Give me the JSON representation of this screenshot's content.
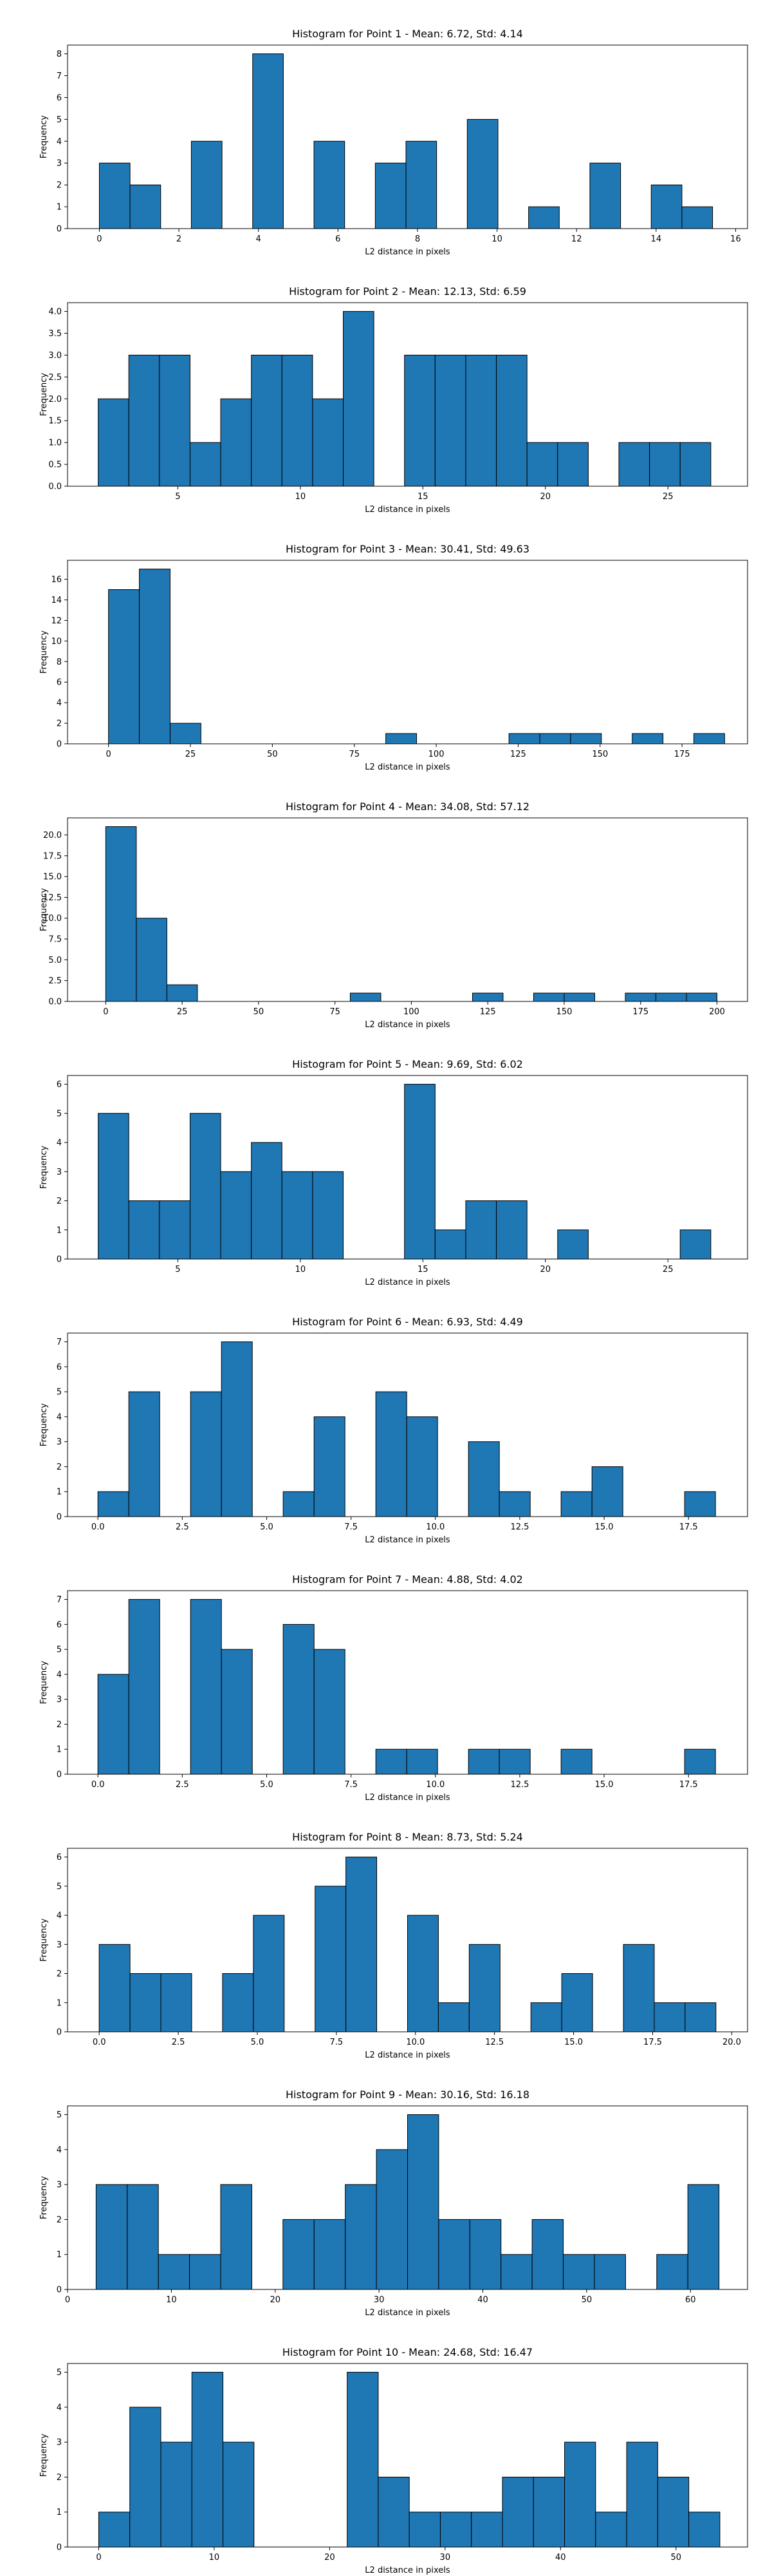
{
  "chart_data": [
    {
      "type": "bar",
      "title": "Histogram for Point 1 - Mean: 6.72, Std: 4.14",
      "xlabel": "L2 distance in pixels",
      "ylabel": "Frequency",
      "xlim": [
        -0.8,
        16.3
      ],
      "ylim": [
        0,
        8.4
      ],
      "xticks": [
        0,
        2,
        4,
        6,
        8,
        10,
        12,
        14,
        16
      ],
      "yticks": [
        0,
        1,
        2,
        3,
        4,
        5,
        6,
        7,
        8
      ],
      "bin_edges": [
        0,
        0.771,
        1.542,
        2.313,
        3.084,
        3.855,
        4.626,
        5.397,
        6.168,
        6.939,
        7.71,
        8.481,
        9.252,
        10.023,
        10.794,
        11.565,
        12.336,
        13.107,
        13.878,
        14.649,
        15.42
      ],
      "values": [
        3,
        2,
        0,
        4,
        0,
        8,
        0,
        4,
        0,
        3,
        4,
        0,
        5,
        0,
        1,
        0,
        3,
        0,
        2,
        1
      ]
    },
    {
      "type": "bar",
      "title": "Histogram for Point 2 - Mean: 12.13, Std: 6.59",
      "xlabel": "L2 distance in pixels",
      "ylabel": "Frequency",
      "xlim": [
        0.5,
        28.25
      ],
      "ylim": [
        0,
        4.2
      ],
      "xticks": [
        5,
        10,
        15,
        20,
        25
      ],
      "yticks": [
        0,
        0.5,
        1.0,
        1.5,
        2.0,
        2.5,
        3.0,
        3.5,
        4.0
      ],
      "ytick_labels": [
        "0.0",
        "0.5",
        "1.0",
        "1.5",
        "2.0",
        "2.5",
        "3.0",
        "3.5",
        "4.0"
      ],
      "bin_edges": [
        1.75,
        3.0,
        4.25,
        5.5,
        6.75,
        8.0,
        9.25,
        10.5,
        11.75,
        13.0,
        14.25,
        15.5,
        16.75,
        18.0,
        19.25,
        20.5,
        21.75,
        23.0,
        24.25,
        25.5,
        26.75
      ],
      "values": [
        2,
        3,
        3,
        1,
        2,
        3,
        3,
        2,
        4,
        0,
        3,
        3,
        3,
        3,
        1,
        1,
        0,
        1,
        1,
        1
      ]
    },
    {
      "type": "bar",
      "title": "Histogram for Point 3 - Mean: 30.41, Std: 49.63",
      "xlabel": "L2 distance in pixels",
      "ylabel": "Frequency",
      "xlim": [
        -12.5,
        195
      ],
      "ylim": [
        0,
        17.85
      ],
      "xticks": [
        0,
        25,
        50,
        75,
        100,
        125,
        150,
        175
      ],
      "yticks": [
        0,
        2,
        4,
        6,
        8,
        10,
        12,
        14,
        16
      ],
      "bin_edges": [
        0,
        9.4,
        18.8,
        28.2,
        37.6,
        47,
        56.4,
        65.8,
        75.2,
        84.6,
        94,
        103.4,
        112.8,
        122.2,
        131.6,
        141,
        150.4,
        159.8,
        169.2,
        178.6,
        188
      ],
      "values": [
        15,
        17,
        2,
        0,
        0,
        0,
        0,
        0,
        0,
        1,
        0,
        0,
        0,
        1,
        1,
        1,
        0,
        1,
        0,
        1
      ]
    },
    {
      "type": "bar",
      "title": "Histogram for Point 4 - Mean: 34.08, Std: 57.12",
      "xlabel": "L2 distance in pixels",
      "ylabel": "Frequency",
      "xlim": [
        -12.5,
        210
      ],
      "ylim": [
        0,
        22.05
      ],
      "xticks": [
        0,
        25,
        50,
        75,
        100,
        125,
        150,
        175,
        200
      ],
      "yticks": [
        0,
        2.5,
        5.0,
        7.5,
        10.0,
        12.5,
        15.0,
        17.5,
        20.0
      ],
      "ytick_labels": [
        "0.0",
        "2.5",
        "5.0",
        "7.5",
        "10.0",
        "12.5",
        "15.0",
        "17.5",
        "20.0"
      ],
      "bin_edges": [
        0,
        10,
        20,
        30,
        40,
        50,
        60,
        70,
        80,
        90,
        100,
        110,
        120,
        130,
        140,
        150,
        160,
        170,
        180,
        190,
        200
      ],
      "values": [
        21,
        10,
        2,
        0,
        0,
        0,
        0,
        0,
        1,
        0,
        0,
        0,
        1,
        0,
        1,
        1,
        0,
        1,
        1,
        1
      ]
    },
    {
      "type": "bar",
      "title": "Histogram for Point 5 - Mean: 9.69, Std: 6.02",
      "xlabel": "L2 distance in pixels",
      "ylabel": "Frequency",
      "xlim": [
        0.5,
        28.25
      ],
      "ylim": [
        0,
        6.3
      ],
      "xticks": [
        5,
        10,
        15,
        20,
        25
      ],
      "yticks": [
        0,
        1,
        2,
        3,
        4,
        5,
        6
      ],
      "bin_edges": [
        1.75,
        3.0,
        4.25,
        5.5,
        6.75,
        8.0,
        9.25,
        10.5,
        11.75,
        13.0,
        14.25,
        15.5,
        16.75,
        18.0,
        19.25,
        20.5,
        21.75,
        23.0,
        24.25,
        25.5,
        26.75
      ],
      "values": [
        5,
        2,
        2,
        5,
        3,
        4,
        3,
        3,
        0,
        0,
        6,
        1,
        2,
        2,
        0,
        1,
        0,
        0,
        0,
        1
      ]
    },
    {
      "type": "bar",
      "title": "Histogram for Point 6 - Mean: 6.93, Std: 4.49",
      "xlabel": "L2 distance in pixels",
      "ylabel": "Frequency",
      "xlim": [
        -0.9,
        19.25
      ],
      "ylim": [
        0,
        7.35
      ],
      "xticks": [
        0.0,
        2.5,
        5.0,
        7.5,
        10.0,
        12.5,
        15.0,
        17.5
      ],
      "xtick_labels": [
        "0.0",
        "2.5",
        "5.0",
        "7.5",
        "10.0",
        "12.5",
        "15.0",
        "17.5"
      ],
      "yticks": [
        0,
        1,
        2,
        3,
        4,
        5,
        6,
        7
      ],
      "bin_edges": [
        0,
        0.915,
        1.83,
        2.745,
        3.66,
        4.575,
        5.49,
        6.405,
        7.32,
        8.235,
        9.15,
        10.065,
        10.98,
        11.895,
        12.81,
        13.725,
        14.64,
        15.555,
        16.47,
        17.385,
        18.3
      ],
      "values": [
        1,
        5,
        0,
        5,
        7,
        0,
        1,
        4,
        0,
        5,
        4,
        0,
        3,
        1,
        0,
        1,
        2,
        0,
        0,
        1
      ]
    },
    {
      "type": "bar",
      "title": "Histogram for Point 7 - Mean: 4.88, Std: 4.02",
      "xlabel": "L2 distance in pixels",
      "ylabel": "Frequency",
      "xlim": [
        -0.9,
        19.25
      ],
      "ylim": [
        0,
        7.35
      ],
      "xticks": [
        0.0,
        2.5,
        5.0,
        7.5,
        10.0,
        12.5,
        15.0,
        17.5
      ],
      "xtick_labels": [
        "0.0",
        "2.5",
        "5.0",
        "7.5",
        "10.0",
        "12.5",
        "15.0",
        "17.5"
      ],
      "yticks": [
        0,
        1,
        2,
        3,
        4,
        5,
        6,
        7
      ],
      "bin_edges": [
        0,
        0.915,
        1.83,
        2.745,
        3.66,
        4.575,
        5.49,
        6.405,
        7.32,
        8.235,
        9.15,
        10.065,
        10.98,
        11.895,
        12.81,
        13.725,
        14.64,
        15.555,
        16.47,
        17.385,
        18.3
      ],
      "values": [
        4,
        7,
        0,
        7,
        5,
        0,
        6,
        5,
        0,
        1,
        1,
        0,
        1,
        1,
        0,
        1,
        0,
        0,
        0,
        1
      ]
    },
    {
      "type": "bar",
      "title": "Histogram for Point 8 - Mean: 8.73, Std: 5.24",
      "xlabel": "L2 distance in pixels",
      "ylabel": "Frequency",
      "xlim": [
        -1.0,
        20.5
      ],
      "ylim": [
        0,
        6.3
      ],
      "xticks": [
        0.0,
        2.5,
        5.0,
        7.5,
        10.0,
        12.5,
        15.0,
        17.5,
        20.0
      ],
      "xtick_labels": [
        "0.0",
        "2.5",
        "5.0",
        "7.5",
        "10.0",
        "12.5",
        "15.0",
        "17.5",
        "20.0"
      ],
      "yticks": [
        0,
        1,
        2,
        3,
        4,
        5,
        6
      ],
      "bin_edges": [
        0,
        0.975,
        1.95,
        2.925,
        3.9,
        4.875,
        5.85,
        6.825,
        7.8,
        8.775,
        9.75,
        10.725,
        11.7,
        12.675,
        13.65,
        14.625,
        15.6,
        16.575,
        17.55,
        18.525,
        19.5
      ],
      "values": [
        3,
        2,
        2,
        0,
        2,
        4,
        0,
        5,
        6,
        0,
        4,
        1,
        3,
        0,
        1,
        2,
        0,
        3,
        1,
        1
      ]
    },
    {
      "type": "bar",
      "title": "Histogram for Point 9 - Mean: 30.16, Std: 16.18",
      "xlabel": "L2 distance in pixels",
      "ylabel": "Frequency",
      "xlim": [
        0,
        65.5
      ],
      "ylim": [
        0,
        5.25
      ],
      "xticks": [
        0,
        10,
        20,
        30,
        40,
        50,
        60
      ],
      "yticks": [
        0,
        1,
        2,
        3,
        4,
        5
      ],
      "bin_edges": [
        2.75,
        5.75,
        8.75,
        11.75,
        14.75,
        17.75,
        20.75,
        23.75,
        26.75,
        29.75,
        32.75,
        35.75,
        38.75,
        41.75,
        44.75,
        47.75,
        50.75,
        53.75,
        56.75,
        59.75,
        62.75
      ],
      "values": [
        3,
        3,
        1,
        1,
        3,
        0,
        2,
        2,
        3,
        4,
        5,
        2,
        2,
        1,
        2,
        1,
        1,
        0,
        1,
        3
      ]
    },
    {
      "type": "bar",
      "title": "Histogram for Point 10 - Mean: 24.68, Std: 16.47",
      "xlabel": "L2 distance in pixels",
      "ylabel": "Frequency",
      "xlim": [
        -2.7,
        56.2
      ],
      "ylim": [
        0,
        5.25
      ],
      "xticks": [
        0,
        10,
        20,
        30,
        40,
        50
      ],
      "yticks": [
        0,
        1,
        2,
        3,
        4,
        5
      ],
      "bin_edges": [
        0,
        2.69,
        5.38,
        8.07,
        10.76,
        13.45,
        16.14,
        18.83,
        21.52,
        24.21,
        26.9,
        29.59,
        32.28,
        34.97,
        37.66,
        40.35,
        43.04,
        45.73,
        48.42,
        51.11,
        53.8
      ],
      "values": [
        1,
        4,
        3,
        5,
        3,
        0,
        0,
        0,
        5,
        2,
        1,
        1,
        1,
        2,
        2,
        3,
        1,
        3,
        2,
        1
      ]
    }
  ]
}
